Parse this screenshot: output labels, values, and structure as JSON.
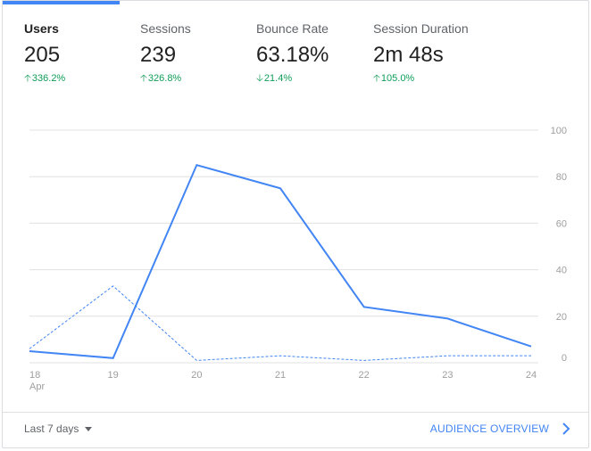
{
  "metrics": [
    {
      "label": "Users",
      "value": "205",
      "change": "336.2%",
      "direction": "up"
    },
    {
      "label": "Sessions",
      "value": "239",
      "change": "326.8%",
      "direction": "up"
    },
    {
      "label": "Bounce Rate",
      "value": "63.18%",
      "change": "21.4%",
      "direction": "down"
    },
    {
      "label": "Session Duration",
      "value": "2m 48s",
      "change": "105.0%",
      "direction": "up"
    }
  ],
  "colors": {
    "accent": "#4285f4",
    "positive": "#0f9d58",
    "grid": "#e0e0e0",
    "axis_text": "#9e9e9e"
  },
  "chart_data": {
    "type": "line",
    "x": [
      "18",
      "19",
      "20",
      "21",
      "22",
      "23",
      "24"
    ],
    "x_sublabel_first": "Apr",
    "y_ticks": [
      0,
      20,
      40,
      60,
      80,
      100
    ],
    "ylim": [
      0,
      100
    ],
    "y_axis_position": "right",
    "grid": true,
    "series": [
      {
        "style": "solid",
        "values": [
          5,
          2,
          85,
          75,
          24,
          19,
          7
        ]
      },
      {
        "style": "dashed",
        "values": [
          6,
          33,
          1,
          3,
          1,
          3,
          3
        ]
      }
    ]
  },
  "footer": {
    "range_label": "Last 7 days",
    "overview_label": "AUDIENCE OVERVIEW"
  }
}
